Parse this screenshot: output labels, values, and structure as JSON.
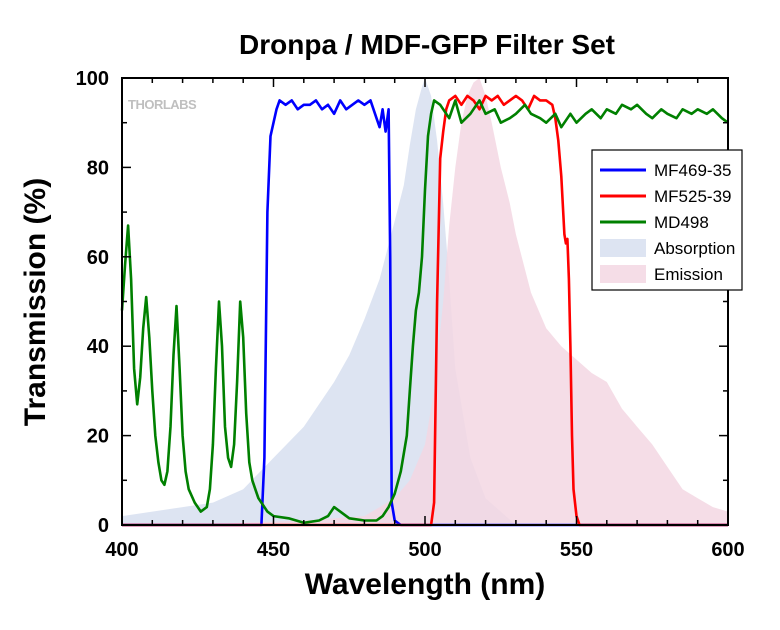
{
  "chart_data": {
    "type": "line",
    "title": "Dronpa / MDF-GFP Filter Set",
    "xlabel": "Wavelength (nm)",
    "ylabel": "Transmission (%)",
    "xlim": [
      400,
      600
    ],
    "ylim": [
      0,
      100
    ],
    "xticks": [
      400,
      450,
      500,
      550,
      600
    ],
    "yticks": [
      0,
      20,
      40,
      60,
      80,
      100
    ],
    "x_minor_step": 10,
    "y_minor_step": 10,
    "grid": false,
    "legend_position": "top-right",
    "watermark": "THORLABS",
    "series": [
      {
        "name": "MF469-35",
        "kind": "line",
        "color": "#0000ff",
        "x": [
          400,
          440,
          446,
          447,
          448,
          449,
          450,
          451,
          452,
          454,
          456,
          458,
          460,
          462,
          464,
          466,
          468,
          470,
          472,
          474,
          476,
          478,
          480,
          482,
          483,
          484,
          485,
          486,
          487,
          488,
          488.5,
          489,
          490,
          491,
          492,
          500,
          600
        ],
        "y": [
          0,
          0,
          0,
          15,
          70,
          87,
          90,
          93,
          95,
          94,
          95,
          93,
          94,
          94,
          95,
          93,
          94,
          92,
          95,
          93,
          94,
          95,
          94,
          95,
          93,
          91,
          89,
          93,
          88,
          93,
          60,
          5,
          1,
          0.5,
          0,
          0,
          0
        ]
      },
      {
        "name": "MF525-39",
        "kind": "line",
        "color": "#ff0000",
        "x": [
          400,
          500,
          502,
          503,
          504,
          505,
          506,
          507,
          508,
          510,
          512,
          514,
          516,
          518,
          520,
          522,
          524,
          526,
          528,
          530,
          532,
          534,
          536,
          538,
          540,
          542,
          543,
          544,
          545,
          546,
          546.5,
          547,
          547.5,
          548,
          548.5,
          549,
          550,
          551,
          555,
          600
        ],
        "y": [
          0,
          0,
          0,
          5,
          50,
          82,
          88,
          93,
          95,
          96,
          94,
          96,
          95,
          93,
          96,
          95,
          96,
          94,
          95,
          96,
          95,
          93,
          96,
          95,
          95,
          94,
          91,
          86,
          78,
          65,
          63,
          64,
          55,
          40,
          20,
          8,
          2,
          0,
          0,
          0
        ]
      },
      {
        "name": "MD498",
        "kind": "line",
        "color": "#008000",
        "x": [
          400,
          401,
          402,
          403,
          404,
          405,
          406,
          407,
          408,
          409,
          410,
          411,
          412,
          413,
          414,
          415,
          416,
          417,
          418,
          419,
          420,
          421,
          422,
          424,
          426,
          428,
          429,
          430,
          431,
          432,
          433,
          434,
          435,
          436,
          437,
          438,
          439,
          440,
          441,
          442,
          443,
          444,
          445,
          446,
          448,
          450,
          455,
          460,
          465,
          468,
          470,
          472,
          475,
          480,
          484,
          486,
          488,
          490,
          492,
          494,
          495,
          496,
          497,
          498,
          499,
          500,
          501,
          502,
          503,
          505,
          508,
          510,
          512,
          515,
          518,
          520,
          523,
          525,
          528,
          530,
          533,
          535,
          538,
          540,
          543,
          545,
          548,
          550,
          553,
          555,
          558,
          560,
          563,
          565,
          568,
          570,
          573,
          575,
          578,
          580,
          583,
          585,
          588,
          590,
          593,
          595,
          598,
          600
        ],
        "y": [
          48,
          58,
          67,
          55,
          35,
          27,
          33,
          44,
          51,
          42,
          30,
          20,
          14,
          10,
          9,
          12,
          22,
          38,
          49,
          35,
          20,
          12,
          8,
          5,
          3,
          4,
          8,
          18,
          35,
          50,
          40,
          22,
          15,
          13,
          18,
          32,
          50,
          42,
          25,
          14,
          10,
          8,
          6,
          5,
          3,
          2,
          1.5,
          0.5,
          1,
          2,
          4,
          3,
          1.5,
          1,
          1,
          2,
          4,
          7,
          12,
          20,
          30,
          40,
          48,
          52,
          60,
          75,
          87,
          92,
          95,
          94,
          91,
          95,
          90,
          92,
          95,
          92,
          93,
          90,
          91,
          92,
          94,
          92,
          91,
          90,
          92,
          89,
          92,
          90,
          92,
          93,
          91,
          93,
          92,
          94,
          93,
          94,
          92,
          91,
          93,
          92,
          91,
          93,
          92,
          93,
          92,
          93,
          91,
          90
        ]
      },
      {
        "name": "Absorption",
        "kind": "area",
        "color": "#d7dff0",
        "x": [
          400,
          410,
          420,
          430,
          440,
          450,
          460,
          470,
          475,
          480,
          485,
          490,
          493,
          495,
          497,
          499,
          500,
          502,
          504,
          506,
          508,
          510,
          515,
          520,
          530
        ],
        "y": [
          2,
          3,
          4,
          5,
          8,
          15,
          22,
          32,
          38,
          46,
          55,
          68,
          76,
          85,
          93,
          98,
          100,
          96,
          86,
          72,
          55,
          35,
          15,
          6,
          0
        ]
      },
      {
        "name": "Emission",
        "kind": "area",
        "color": "#f3d7e3",
        "x": [
          425,
          440,
          460,
          480,
          490,
          495,
          500,
          503,
          506,
          508,
          510,
          512,
          514,
          516,
          518,
          520,
          522,
          525,
          528,
          530,
          535,
          540,
          545,
          550,
          555,
          560,
          565,
          570,
          575,
          580,
          585,
          590,
          595,
          600
        ],
        "y": [
          0,
          0.5,
          1,
          2,
          6,
          10,
          18,
          30,
          50,
          67,
          80,
          90,
          96,
          99,
          100,
          96,
          90,
          80,
          72,
          65,
          52,
          44,
          40,
          37,
          34,
          32,
          26,
          22,
          18,
          13,
          8,
          6,
          4,
          3
        ]
      }
    ]
  }
}
